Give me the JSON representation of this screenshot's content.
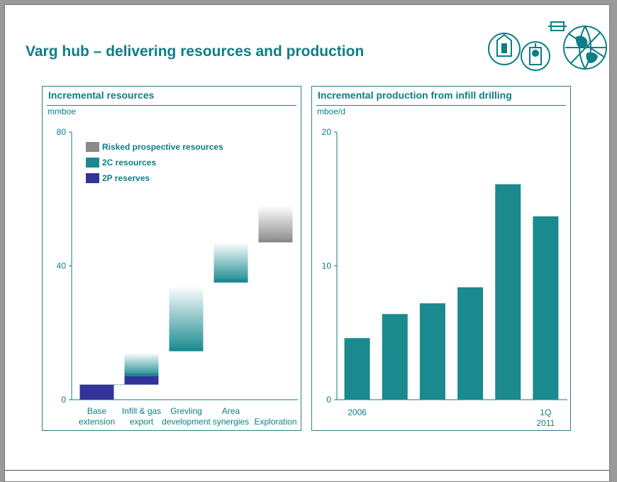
{
  "title": "Varg hub – delivering resources and production",
  "colors": {
    "accent": "#0c7e86",
    "teal": "#1a8a8f",
    "blue": "#33339a",
    "grey": "#8a8a8a"
  },
  "logo": {
    "icon": "globe-tools-logo"
  },
  "chart_data": [
    {
      "type": "bar",
      "stacked": "waterfall",
      "title": "Incremental resources",
      "ylabel": "mmboe",
      "ylim": [
        0,
        80
      ],
      "yticks": [
        0,
        40,
        80
      ],
      "categories": [
        [
          "Base",
          "extension"
        ],
        [
          "Infill & gas",
          "export"
        ],
        [
          "Grevling",
          "development"
        ],
        [
          "Area",
          "synergies"
        ],
        [
          "",
          "Exploration"
        ]
      ],
      "legend": [
        {
          "name": "Risked prospective resources",
          "color": "#8a8a8a"
        },
        {
          "name": "2C resources",
          "color": "#1a8a8f"
        },
        {
          "name": "2P reserves",
          "color": "#33339a"
        }
      ],
      "segments": [
        [
          {
            "kind": "2P reserves",
            "from": 0,
            "to": 4.5
          }
        ],
        [
          {
            "kind": "2P reserves",
            "from": 4.5,
            "to": 7
          },
          {
            "kind": "2C resources",
            "from": 7,
            "to": 14
          }
        ],
        [
          {
            "kind": "2C resources",
            "from": 14.5,
            "to": 34
          }
        ],
        [
          {
            "kind": "2C resources",
            "from": 35,
            "to": 47
          }
        ],
        [
          {
            "kind": "Risked prospective resources",
            "from": 47,
            "to": 58
          }
        ]
      ]
    },
    {
      "type": "bar",
      "title": "Incremental production from infill drilling",
      "ylabel": "mboe/d",
      "ylim": [
        0,
        20
      ],
      "yticks": [
        0,
        10,
        20
      ],
      "categories": [
        [
          "2006",
          ""
        ],
        [
          "",
          ""
        ],
        [
          "",
          ""
        ],
        [
          "",
          ""
        ],
        [
          "",
          ""
        ],
        [
          "1Q",
          "2011"
        ]
      ],
      "values": [
        4.6,
        6.4,
        7.2,
        8.4,
        16.1,
        13.7
      ],
      "color": "#1a8a8f"
    }
  ]
}
